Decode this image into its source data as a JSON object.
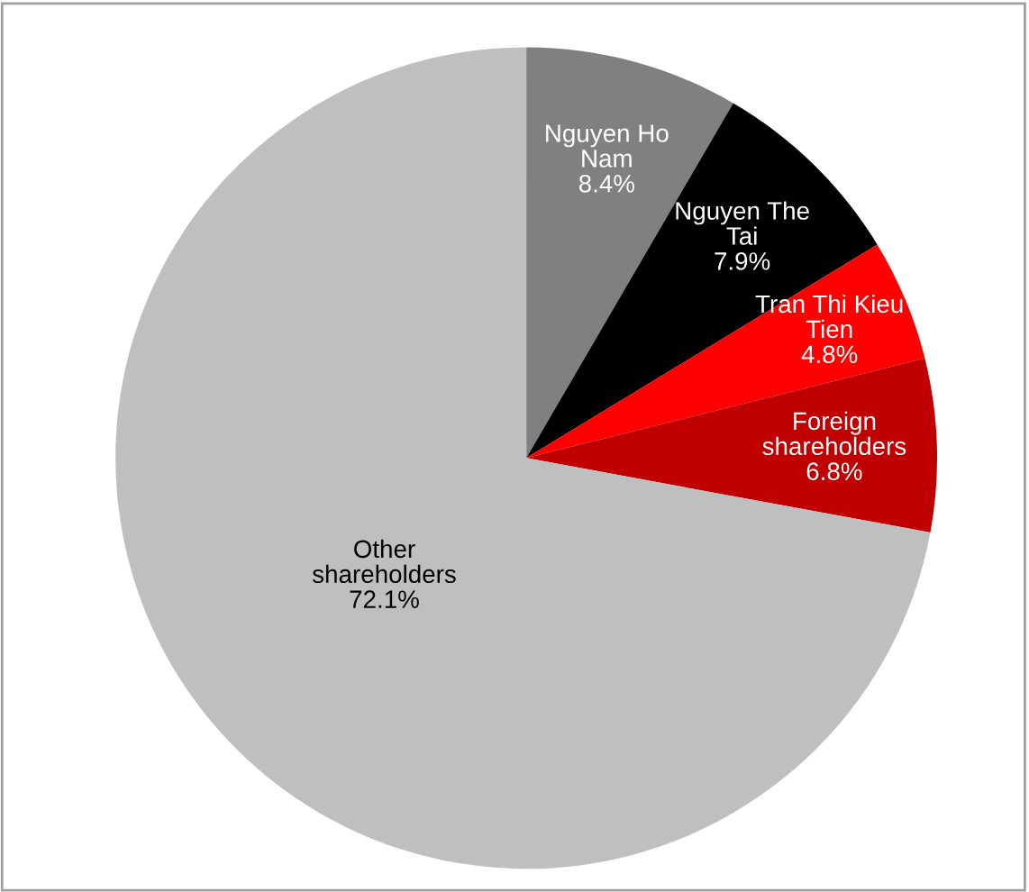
{
  "chart_data": {
    "type": "pie",
    "categories": [
      "Nguyen Ho Nam",
      "Nguyen The Tai",
      "Tran Thi Kieu Tien",
      "Foreign shareholders",
      "Other shareholders"
    ],
    "values": [
      8.4,
      7.9,
      4.8,
      6.8,
      72.1
    ],
    "colors": [
      "#808080",
      "#000000",
      "#ff0000",
      "#c00000",
      "#bfbfbf"
    ],
    "value_labels": [
      "8.4%",
      "7.9%",
      "4.8%",
      "6.8%",
      "72.1%"
    ],
    "legend": false
  }
}
